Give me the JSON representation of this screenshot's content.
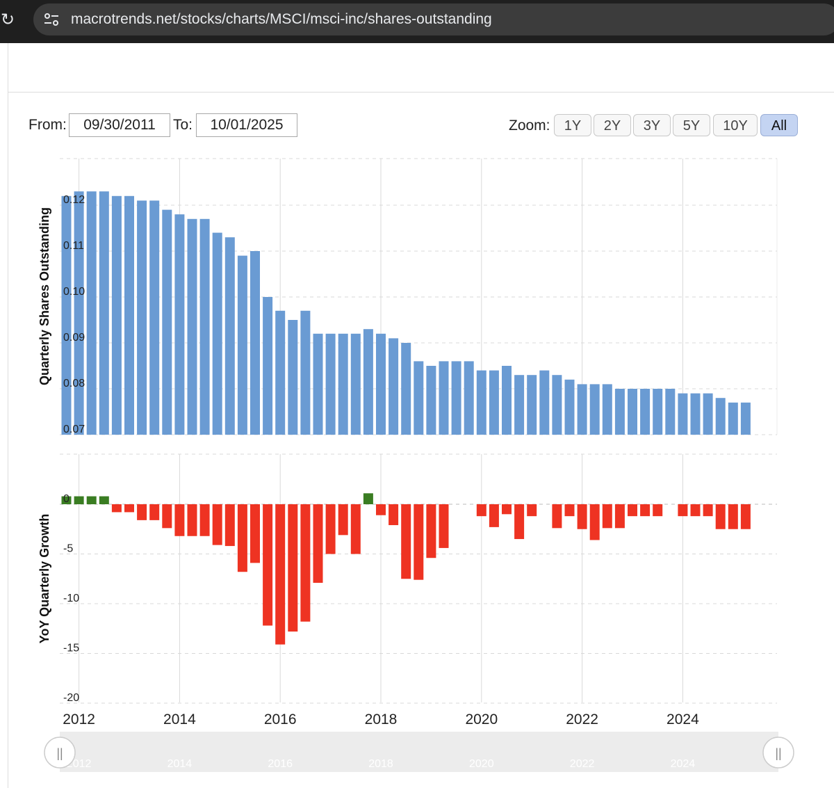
{
  "browser": {
    "url": "macrotrends.net/stocks/charts/MSCI/msci-inc/shares-outstanding"
  },
  "controls": {
    "from_label": "From:",
    "from_value": "09/30/2011",
    "to_label": "To:",
    "to_value": "10/01/2025",
    "zoom_label": "Zoom:",
    "zoom_options": [
      "1Y",
      "2Y",
      "3Y",
      "5Y",
      "10Y",
      "All"
    ],
    "zoom_selected": "All"
  },
  "colors": {
    "shares_bar": "#6a9bd3",
    "growth_positive": "#3a7d22",
    "growth_negative": "#ee3322",
    "grid": "#d8d8d8"
  },
  "chart_data": [
    {
      "type": "bar",
      "title": "",
      "ylabel": "Quarterly Shares Outstanding",
      "xlabel": "",
      "ylim": [
        0.07,
        0.12
      ],
      "yticks": [
        0.07,
        0.08,
        0.09,
        0.1,
        0.11,
        0.12
      ],
      "ytick_labels": [
        "0.07",
        "0.08",
        "0.09",
        "0.10",
        "0.11",
        "0.12"
      ],
      "x_start_year": 2011.75,
      "x_step_years": 0.25,
      "values": [
        0.122,
        0.123,
        0.123,
        0.123,
        0.122,
        0.122,
        0.121,
        0.121,
        0.119,
        0.118,
        0.117,
        0.117,
        0.114,
        0.113,
        0.109,
        0.11,
        0.1,
        0.097,
        0.095,
        0.097,
        0.092,
        0.092,
        0.092,
        0.092,
        0.093,
        0.092,
        0.091,
        0.09,
        0.086,
        0.085,
        0.086,
        0.086,
        0.086,
        0.084,
        0.084,
        0.085,
        0.083,
        0.083,
        0.084,
        0.083,
        0.082,
        0.081,
        0.081,
        0.081,
        0.08,
        0.08,
        0.08,
        0.08,
        0.08,
        0.079,
        0.079,
        0.079,
        0.078,
        0.077,
        0.077
      ]
    },
    {
      "type": "bar",
      "title": "",
      "ylabel": "YoY Quarterly Growth",
      "xlabel": "",
      "ylim": [
        -20,
        5
      ],
      "yticks": [
        0,
        -5,
        -10,
        -15,
        -20
      ],
      "ytick_labels": [
        "0",
        "-5",
        "-10",
        "-15",
        "-20"
      ],
      "x_start_year": 2011.75,
      "x_step_years": 0.25,
      "values": [
        0.8,
        0.8,
        0.8,
        0.8,
        -0.8,
        -0.8,
        -1.6,
        -1.6,
        -2.4,
        -3.2,
        -3.2,
        -3.2,
        -4.1,
        -4.2,
        -6.8,
        -5.9,
        -12.2,
        -14.1,
        -12.8,
        -11.8,
        -7.9,
        -5.0,
        -3.1,
        -5.0,
        1.1,
        -1.1,
        -2.1,
        -7.5,
        -7.6,
        -5.4,
        -4.4,
        0,
        0,
        -1.2,
        -2.3,
        -1.0,
        -3.5,
        -1.2,
        0,
        -2.4,
        -1.2,
        -2.5,
        -3.6,
        -2.4,
        -2.4,
        -1.2,
        -1.2,
        -1.2,
        0,
        -1.2,
        -1.2,
        -1.2,
        -2.5,
        -2.5,
        -2.5
      ]
    }
  ],
  "xaxis": {
    "tick_labels": [
      "2012",
      "2014",
      "2016",
      "2018",
      "2020",
      "2022",
      "2024"
    ],
    "tick_years": [
      2012,
      2014,
      2016,
      2018,
      2020,
      2022,
      2024
    ]
  },
  "navigator": {
    "tick_labels": [
      "2012",
      "2014",
      "2016",
      "2018",
      "2020",
      "2022",
      "2024"
    ],
    "left_handle": "||",
    "right_handle": "||"
  }
}
